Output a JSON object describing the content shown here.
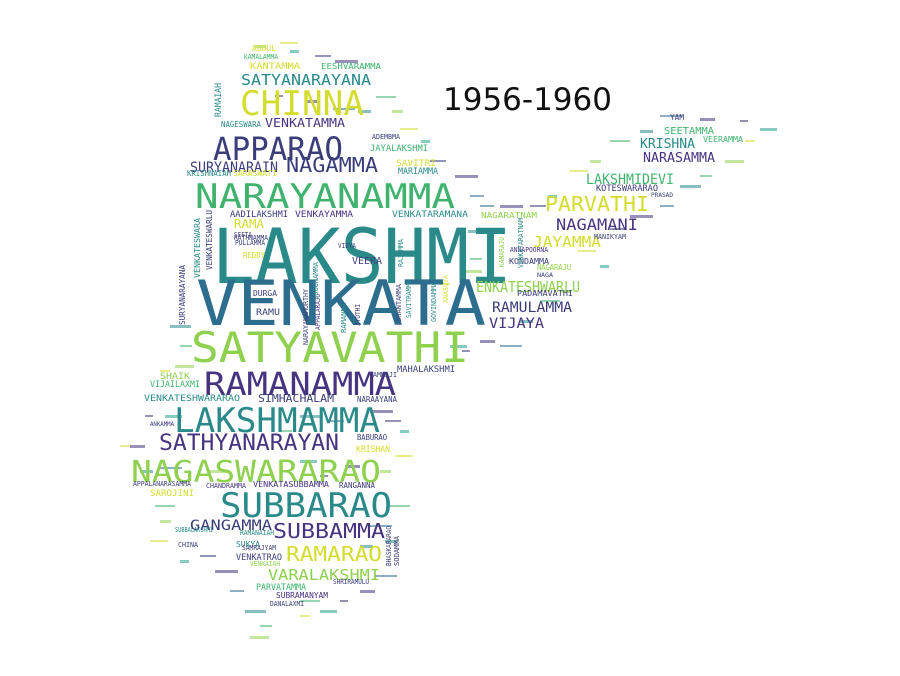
{
  "title": "1956-1960",
  "palette": {
    "dark": "#3b3d7a",
    "purple": "#463480",
    "blue": "#2d6d8e",
    "teal": "#2a8a8a",
    "green": "#3fb36d",
    "lime": "#8fd14f",
    "yellow": "#d4dd2e",
    "tealgreen": "#27a08a"
  },
  "words": {
    "lakshmi": "LAKSHMI",
    "venkata": "VENKATA",
    "satyavathi": "SATYAVATHI",
    "narayanamma": "NARAYANAMMA",
    "apparao": "APPARAO",
    "chinna": "CHINNA",
    "ramanamma": "RAMANAMMA",
    "lakshmamma": "LAKSHMAMMA",
    "nagaswararao": "NAGASWARARAO",
    "subbarao": "SUBBARAO",
    "sathyanarayan": "SATHYANARAYAN",
    "nagamma": "NAGAMMA",
    "satyanarayana": "SATYANARAYANA",
    "suryanarain": "SURYANARAIN",
    "venkatamma": "VENKATAMMA",
    "subbamma": "SUBBAMMA",
    "gangamma": "GANGAMMA",
    "ramarao": "RAMARAO",
    "varalakshmi": "VARALAKSHMI",
    "parvathi": "PARVATHI",
    "lakshmidevi": "LAKSHMIDEVI",
    "nagamani": "NAGAMANI",
    "jayamma": "JAYAMMA",
    "enkateshwarlu": "ENKATESHWARLU",
    "ramulamma": "RAMULAMMA",
    "vijaya": "VIJAYA",
    "krishna": "KRISHNA",
    "narasamma": "NARASAMMA",
    "seetamma": "SEETAMMA",
    "simhachalam": "SIMHACHALAM",
    "mahalakshmi": "MAHALAKSHMI",
    "kantamma": "KANTAMMA",
    "eeshvaramma": "EESHVARAMMA",
    "jayalakshmi": "JAYALAKSHMI",
    "savitri": "SAVITRI",
    "mariamma": "MARIAMMA",
    "krishnaiah": "KRISHNAIAH",
    "saraswati": "SARASWATI",
    "aadilakshmi": "AADILAKSHMI",
    "venkayamma": "VENKAYAMMA",
    "venkataramana": "VENKATARAMANA",
    "nagaratnam": "NAGARATNAM",
    "kondamma": "KONDAMMA",
    "padamavathi": "PADAMAVATHI",
    "veeramma": "VEERAMMA",
    "koteswararao": "KOTESWARARAO",
    "shaik": "SHAIK",
    "vijailaxmi": "VIJAILAXMI",
    "venkateshwararao": "VENKATESHWARARAO",
    "naraayana": "NARAAYANA",
    "sarojini": "SAROJINI",
    "venkatasubbamma": "VENKATASUBBAMMA",
    "ranganna": "RANGANNA",
    "krishan": "KRISHAN",
    "baburao": "BABURAO",
    "chandramma": "CHANDRAMMA",
    "venkatrao": "VENKATRAO",
    "parvatamma": "PARVATAMMA",
    "subramanyam": "SUBRAMANYAM",
    "danalaxmi": "DANALAXMI",
    "sukya": "SUKYA",
    "china": "CHINA",
    "veera": "VEERA",
    "rama": "RAMA",
    "ramu": "RAMU",
    "durga": "DURGA",
    "ramaiah": "RAMAIAH",
    "abdul": "ABDUL",
    "kamalamma": "KAMALAMMA",
    "nageswara": "NAGESWARA",
    "pullamma": "PULLAMMA",
    "reddy": "REDDY",
    "seeta": "SEETA",
    "vidya": "VIDYA",
    "manikyam": "MANIKYAM",
    "subbalakshmi": "SUBBALAKSHMI",
    "ramanaiah": "RAMANAIAH",
    "venkaiah": "VENKAIAH",
    "samrajyam": "SAMRAJYAM",
    "shriramulu": "SHRIRAMULU",
    "annapoorna": "ANNAPOORNA",
    "nagaraju": "NAGARAJU",
    "appalanarasamma": "APPALANARASAMMA",
    "suryanarayana": "SURYANARAYANA",
    "venkateswara": "VENKATESWARA",
    "venkateswarlu": "VENKATESWARLU",
    "ramanna": "RAMANNA",
    "savitramma": "SAVITRAMMA",
    "shantamma": "SHANTAMMA",
    "govindamma": "GOVINDAMMA",
    "anasuya": "ANASUYA",
    "rathnamma": "RATHNAMMA",
    "yam": "YAM",
    "ammaji": "AMMAJI",
    "adembma": "ADEMBMA",
    "rajamma": "RAJAMMA",
    "appalaraju": "APPALARAJU",
    "narayanamurthy": "NARAYANAMURTHY",
    "sugunamma": "SUGUNAMMA",
    "venkataratnam": "VENKATARATNAM",
    "kamaraju": "KAMARAJU",
    "sodamma": "SODAMMA",
    "bhaskararao": "BHASKARARAO",
    "ankamma": "ANKAMMA",
    "prasad": "PRASAD",
    "naga": "NAGA",
    "jyothi": "JYOTHI"
  }
}
